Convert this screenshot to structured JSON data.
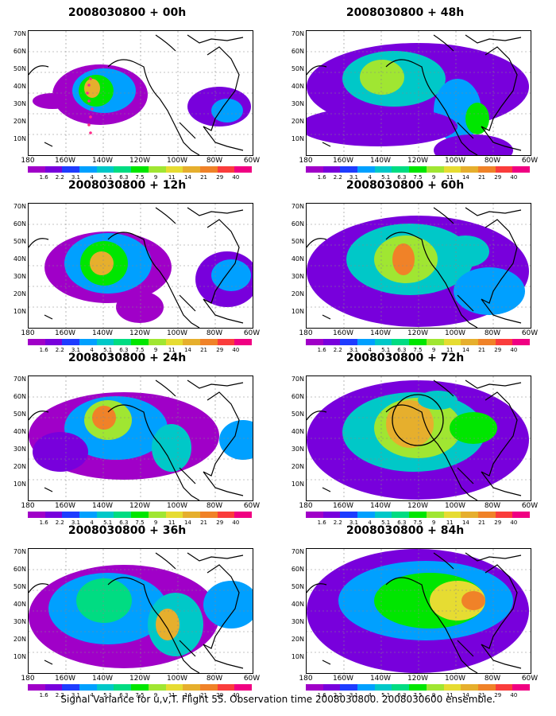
{
  "panels": [
    {
      "title": "2008030800 + 00h"
    },
    {
      "title": "2008030800 + 48h"
    },
    {
      "title": "2008030800 + 12h"
    },
    {
      "title": "2008030800 + 60h"
    },
    {
      "title": "2008030800 + 24h"
    },
    {
      "title": "2008030800 + 72h"
    },
    {
      "title": "2008030800 + 36h"
    },
    {
      "title": "2008030800 + 84h"
    }
  ],
  "lat_labels": [
    "70N",
    "60N",
    "50N",
    "40N",
    "30N",
    "20N",
    "10N"
  ],
  "lon_labels": [
    "180",
    "160W",
    "140W",
    "120W",
    "100W",
    "80W",
    "60W"
  ],
  "colorbar": {
    "labels": [
      "1.6",
      "2.2",
      "3.1",
      "4",
      "5.1",
      "6.3",
      "7.5",
      "9",
      "11",
      "14",
      "21",
      "29",
      "40"
    ],
    "colors": [
      "#a000c8",
      "#7800dc",
      "#1e3cff",
      "#00a0ff",
      "#00c8c8",
      "#00dc82",
      "#00e600",
      "#a0e632",
      "#e6dc32",
      "#e6af2d",
      "#f08228",
      "#fa3c3c",
      "#f00082"
    ]
  },
  "caption": "Signal Variance for u,v,T. Flight 55. Observation time 2008030800. 2008030600 ensemble."
}
